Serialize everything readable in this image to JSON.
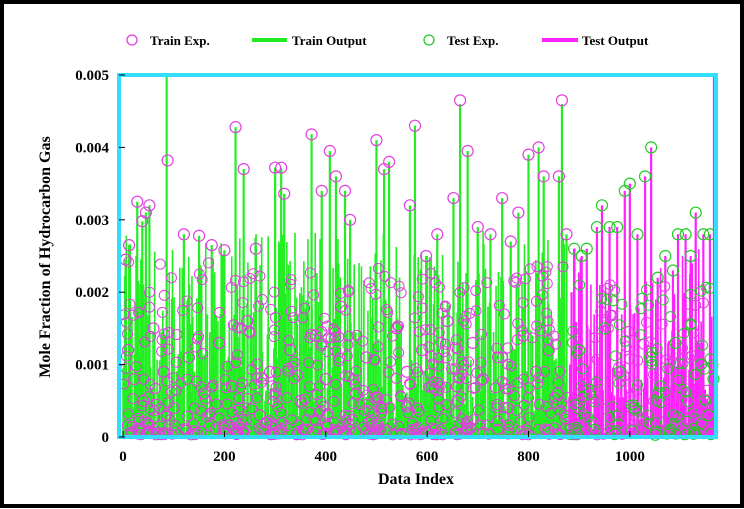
{
  "chart_data": {
    "type": "scatter",
    "xlabel": "Data Index",
    "ylabel": "Mole Fraction of Hydrocarbon Gas",
    "xlim": [
      -8,
      1170
    ],
    "ylim": [
      0,
      0.005
    ],
    "x_ticks": [
      0,
      200,
      400,
      600,
      800,
      1000
    ],
    "x_tick_labels": [
      "0",
      "200",
      "400",
      "600",
      "800",
      "1000"
    ],
    "y_ticks": [
      0,
      0.001,
      0.002,
      0.003,
      0.004,
      0.005
    ],
    "y_tick_labels": [
      "0",
      "0.001",
      "0.002",
      "0.003",
      "0.004",
      "0.005"
    ],
    "legend_position": "top",
    "colors": {
      "train_exp": "#e040e0",
      "train_output": "#22ee22",
      "test_exp": "#22cc22",
      "test_output": "#ff22ff",
      "plot_border": "#33ddff"
    },
    "train_range": [
      0,
      880
    ],
    "test_range": [
      880,
      1165
    ],
    "series": [
      {
        "name": "Train Exp.",
        "marker": "circle",
        "points": [
          [
            5,
            0.00245
          ],
          [
            12,
            0.00265
          ],
          [
            28,
            0.00325
          ],
          [
            38,
            0.00298
          ],
          [
            45,
            0.0031
          ],
          [
            52,
            0.0032
          ],
          [
            88,
            0.00382
          ],
          [
            120,
            0.0028
          ],
          [
            150,
            0.00278
          ],
          [
            175,
            0.00265
          ],
          [
            200,
            0.00258
          ],
          [
            222,
            0.00428
          ],
          [
            238,
            0.0037
          ],
          [
            262,
            0.0026
          ],
          [
            300,
            0.00372
          ],
          [
            312,
            0.00372
          ],
          [
            318,
            0.00336
          ],
          [
            372,
            0.00418
          ],
          [
            392,
            0.0034
          ],
          [
            408,
            0.00395
          ],
          [
            420,
            0.0036
          ],
          [
            438,
            0.0034
          ],
          [
            448,
            0.003
          ],
          [
            500,
            0.0041
          ],
          [
            515,
            0.0037
          ],
          [
            525,
            0.0038
          ],
          [
            566,
            0.0032
          ],
          [
            576,
            0.0043
          ],
          [
            598,
            0.0025
          ],
          [
            620,
            0.0028
          ],
          [
            652,
            0.0033
          ],
          [
            665,
            0.00465
          ],
          [
            680,
            0.00395
          ],
          [
            700,
            0.0029
          ],
          [
            725,
            0.0028
          ],
          [
            748,
            0.0033
          ],
          [
            765,
            0.0027
          ],
          [
            780,
            0.0031
          ],
          [
            800,
            0.0039
          ],
          [
            820,
            0.004
          ],
          [
            830,
            0.0036
          ],
          [
            860,
            0.0036
          ],
          [
            866,
            0.00465
          ],
          [
            875,
            0.0028
          ],
          [
            10,
            0.0012
          ],
          [
            22,
            0.0008
          ],
          [
            40,
            0.0005
          ],
          [
            60,
            0.0015
          ],
          [
            80,
            0.0009
          ],
          [
            100,
            0.0004
          ],
          [
            130,
            0.0011
          ],
          [
            160,
            0.0006
          ],
          [
            190,
            0.0013
          ],
          [
            215,
            0.0007
          ],
          [
            245,
            0.0016
          ],
          [
            270,
            0.0003
          ],
          [
            290,
            0.0009
          ],
          [
            330,
            0.0012
          ],
          [
            350,
            0.0005
          ],
          [
            380,
            0.0014
          ],
          [
            400,
            0.0008
          ],
          [
            430,
            0.0018
          ],
          [
            460,
            0.0006
          ],
          [
            480,
            0.0011
          ],
          [
            510,
            0.0004
          ],
          [
            540,
            0.0015
          ],
          [
            560,
            0.0009
          ],
          [
            590,
            0.0012
          ],
          [
            610,
            0.0007
          ],
          [
            640,
            0.0016
          ],
          [
            660,
            0.0005
          ],
          [
            690,
            0.0013
          ],
          [
            710,
            0.0008
          ],
          [
            740,
            0.0011
          ],
          [
            760,
            0.0004
          ],
          [
            790,
            0.0014
          ],
          [
            815,
            0.0009
          ],
          [
            840,
            0.0012
          ],
          [
            858,
            0.0006
          ],
          [
            30,
            0.0001
          ],
          [
            70,
            5e-05
          ],
          [
            140,
            8e-05
          ],
          [
            200,
            0.00012
          ],
          [
            280,
            6e-05
          ],
          [
            360,
            0.0001
          ],
          [
            440,
            4e-05
          ],
          [
            520,
            9e-05
          ],
          [
            600,
            7e-05
          ],
          [
            680,
            0.00011
          ],
          [
            760,
            5e-05
          ],
          [
            840,
            8e-05
          ]
        ]
      },
      {
        "name": "Train Output",
        "type": "vertical-line",
        "points": [
          [
            5,
            0.00245
          ],
          [
            12,
            0.00265
          ],
          [
            28,
            0.00325
          ],
          [
            38,
            0.00298
          ],
          [
            45,
            0.0031
          ],
          [
            52,
            0.0032
          ],
          [
            86,
            0.005
          ],
          [
            120,
            0.0028
          ],
          [
            150,
            0.00278
          ],
          [
            175,
            0.00265
          ],
          [
            200,
            0.00258
          ],
          [
            222,
            0.00428
          ],
          [
            238,
            0.0037
          ],
          [
            262,
            0.0026
          ],
          [
            300,
            0.00372
          ],
          [
            312,
            0.00372
          ],
          [
            318,
            0.00336
          ],
          [
            372,
            0.00418
          ],
          [
            392,
            0.0034
          ],
          [
            408,
            0.00395
          ],
          [
            420,
            0.0036
          ],
          [
            438,
            0.0034
          ],
          [
            448,
            0.003
          ],
          [
            500,
            0.0041
          ],
          [
            515,
            0.0037
          ],
          [
            525,
            0.0038
          ],
          [
            566,
            0.0032
          ],
          [
            576,
            0.0043
          ],
          [
            598,
            0.0025
          ],
          [
            620,
            0.0028
          ],
          [
            652,
            0.0033
          ],
          [
            665,
            0.0046
          ],
          [
            680,
            0.00395
          ],
          [
            700,
            0.0029
          ],
          [
            725,
            0.0028
          ],
          [
            748,
            0.0033
          ],
          [
            765,
            0.0027
          ],
          [
            780,
            0.0031
          ],
          [
            800,
            0.0039
          ],
          [
            820,
            0.004
          ],
          [
            830,
            0.0036
          ],
          [
            860,
            0.0036
          ],
          [
            866,
            0.0046
          ],
          [
            875,
            0.0028
          ]
        ]
      },
      {
        "name": "Test Exp.",
        "marker": "circle",
        "points": [
          [
            890,
            0.0026
          ],
          [
            905,
            0.0025
          ],
          [
            915,
            0.0026
          ],
          [
            935,
            0.0029
          ],
          [
            945,
            0.0032
          ],
          [
            960,
            0.0029
          ],
          [
            975,
            0.0029
          ],
          [
            990,
            0.0034
          ],
          [
            1000,
            0.0035
          ],
          [
            1015,
            0.0028
          ],
          [
            1030,
            0.0036
          ],
          [
            1042,
            0.004
          ],
          [
            1055,
            0.0022
          ],
          [
            1070,
            0.0025
          ],
          [
            1085,
            0.0023
          ],
          [
            1095,
            0.0028
          ],
          [
            1110,
            0.0028
          ],
          [
            1120,
            0.0025
          ],
          [
            1130,
            0.0031
          ],
          [
            1145,
            0.0028
          ],
          [
            1158,
            0.0028
          ],
          [
            1165,
            0.0008
          ],
          [
            900,
            0.0012
          ],
          [
            920,
            0.0006
          ],
          [
            950,
            0.0015
          ],
          [
            980,
            0.0009
          ],
          [
            1010,
            0.0004
          ],
          [
            1040,
            0.0011
          ],
          [
            1060,
            0.0007
          ],
          [
            1090,
            0.0013
          ],
          [
            1115,
            0.0005
          ],
          [
            1140,
            0.001
          ],
          [
            1155,
            0.0003
          ],
          [
            895,
            5e-05
          ],
          [
            930,
            0.0001
          ],
          [
            970,
            4e-05
          ],
          [
            1005,
            8e-05
          ],
          [
            1050,
            3e-05
          ],
          [
            1080,
            0.0001
          ],
          [
            1125,
            6e-05
          ],
          [
            1160,
            4e-05
          ]
        ]
      },
      {
        "name": "Test Output",
        "type": "vertical-line",
        "points": [
          [
            885,
            0.002
          ],
          [
            890,
            0.0026
          ],
          [
            905,
            0.0025
          ],
          [
            915,
            0.0026
          ],
          [
            935,
            0.0029
          ],
          [
            945,
            0.0032
          ],
          [
            960,
            0.0029
          ],
          [
            975,
            0.0029
          ],
          [
            990,
            0.0034
          ],
          [
            1000,
            0.0035
          ],
          [
            1015,
            0.0028
          ],
          [
            1030,
            0.0036
          ],
          [
            1042,
            0.004
          ],
          [
            1055,
            0.0022
          ],
          [
            1070,
            0.0025
          ],
          [
            1085,
            0.0023
          ],
          [
            1095,
            0.0028
          ],
          [
            1110,
            0.0028
          ],
          [
            1120,
            0.0025
          ],
          [
            1130,
            0.0031
          ],
          [
            1145,
            0.0028
          ],
          [
            1158,
            0.0028
          ],
          [
            1166,
            0.005
          ]
        ]
      }
    ]
  }
}
